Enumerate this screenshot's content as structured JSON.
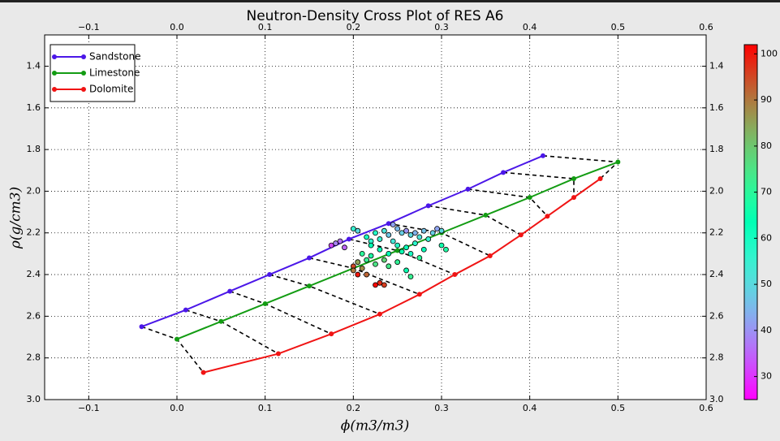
{
  "chart_data": {
    "type": "scatter",
    "title": "Neutron-Density Cross Plot of RES A6",
    "x_label": "ϕ(m3/m3)",
    "y_label": "ρ(g/cm3)",
    "xlim": [
      -0.15,
      0.6
    ],
    "ylim": [
      3.0,
      1.25
    ],
    "xticks": [
      {
        "value": -0.1,
        "label": "−0.1"
      },
      {
        "value": 0,
        "label": "0.0"
      },
      0.1,
      0.2,
      0.3,
      0.4,
      0.5,
      0.6
    ],
    "yticks": [
      1.4,
      1.6,
      1.8,
      {
        "value": 2,
        "label": "2.0"
      },
      2.2,
      2.4,
      2.6,
      2.8,
      {
        "value": 3,
        "label": "3.0"
      }
    ],
    "grid": true,
    "legend": "upper left",
    "series": [
      {
        "name": "Sandstone",
        "type": "line",
        "color": "#4b17e8",
        "x": [
          -0.04,
          0.01,
          0.06,
          0.105,
          0.15,
          0.195,
          0.24,
          0.285,
          0.33,
          0.37,
          0.415
        ],
        "values": [
          2.65,
          2.57,
          2.48,
          2.4,
          2.32,
          2.23,
          2.155,
          2.07,
          1.99,
          1.91,
          1.83
        ]
      },
      {
        "name": "Limestone",
        "type": "line",
        "color": "#139c13",
        "x": [
          0,
          0.05,
          0.1,
          0.15,
          0.2,
          0.25,
          0.3,
          0.35,
          0.4,
          0.45,
          0.5
        ],
        "values": [
          2.71,
          2.625,
          2.54,
          2.455,
          2.37,
          2.285,
          2.2,
          2.115,
          2.03,
          1.94,
          1.86
        ]
      },
      {
        "name": "Dolomite",
        "type": "line",
        "color": "#f01414",
        "x": [
          0.03,
          0.115,
          0.175,
          0.23,
          0.275,
          0.315,
          0.355,
          0.39,
          0.42,
          0.45,
          0.48
        ],
        "values": [
          2.87,
          2.78,
          2.685,
          2.59,
          2.495,
          2.4,
          2.31,
          2.21,
          2.12,
          2.03,
          1.94
        ]
      },
      {
        "type": "scatter",
        "x": [
          0.245,
          0.25,
          0.255,
          0.26,
          0.265,
          0.27,
          0.275,
          0.28,
          0.285,
          0.29,
          0.295,
          0.3,
          0.235,
          0.24,
          0.23,
          0.225,
          0.22,
          0.215,
          0.2,
          0.205,
          0.245,
          0.25,
          0.26,
          0.27,
          0.255,
          0.265,
          0.28,
          0.3,
          0.305,
          0.275,
          0.24,
          0.23,
          0.22,
          0.215,
          0.21,
          0.225,
          0.235,
          0.24,
          0.25,
          0.205,
          0.21,
          0.215,
          0.2,
          0.205,
          0.23,
          0.235,
          0.225,
          0.2,
          0.19,
          0.18,
          0.175,
          0.185,
          0.26,
          0.265,
          0.22
        ],
        "values": [
          2.16,
          2.18,
          2.2,
          2.19,
          2.21,
          2.2,
          2.22,
          2.19,
          2.23,
          2.2,
          2.18,
          2.19,
          2.19,
          2.21,
          2.23,
          2.2,
          2.24,
          2.22,
          2.18,
          2.19,
          2.24,
          2.26,
          2.27,
          2.25,
          2.29,
          2.3,
          2.28,
          2.26,
          2.28,
          2.32,
          2.3,
          2.28,
          2.31,
          2.33,
          2.3,
          2.35,
          2.33,
          2.36,
          2.34,
          2.34,
          2.37,
          2.4,
          2.36,
          2.4,
          2.44,
          2.45,
          2.45,
          2.38,
          2.27,
          2.25,
          2.26,
          2.24,
          2.38,
          2.41,
          2.26
        ],
        "c": [
          42,
          45,
          48,
          40,
          50,
          44,
          52,
          46,
          55,
          48,
          42,
          50,
          52,
          47,
          55,
          58,
          56,
          60,
          55,
          50,
          53,
          58,
          62,
          57,
          65,
          60,
          63,
          66,
          68,
          70,
          63,
          62,
          68,
          72,
          70,
          75,
          78,
          74,
          71,
          85,
          88,
          92,
          95,
          100,
          98,
          96,
          101,
          90,
          35,
          38,
          32,
          36,
          65,
          72,
          64
        ]
      }
    ],
    "colorbar": {
      "cmap": "rainbow",
      "clim": [
        25,
        102
      ],
      "ticks": [
        30,
        40,
        50,
        60,
        70,
        80,
        90,
        100
      ]
    }
  }
}
